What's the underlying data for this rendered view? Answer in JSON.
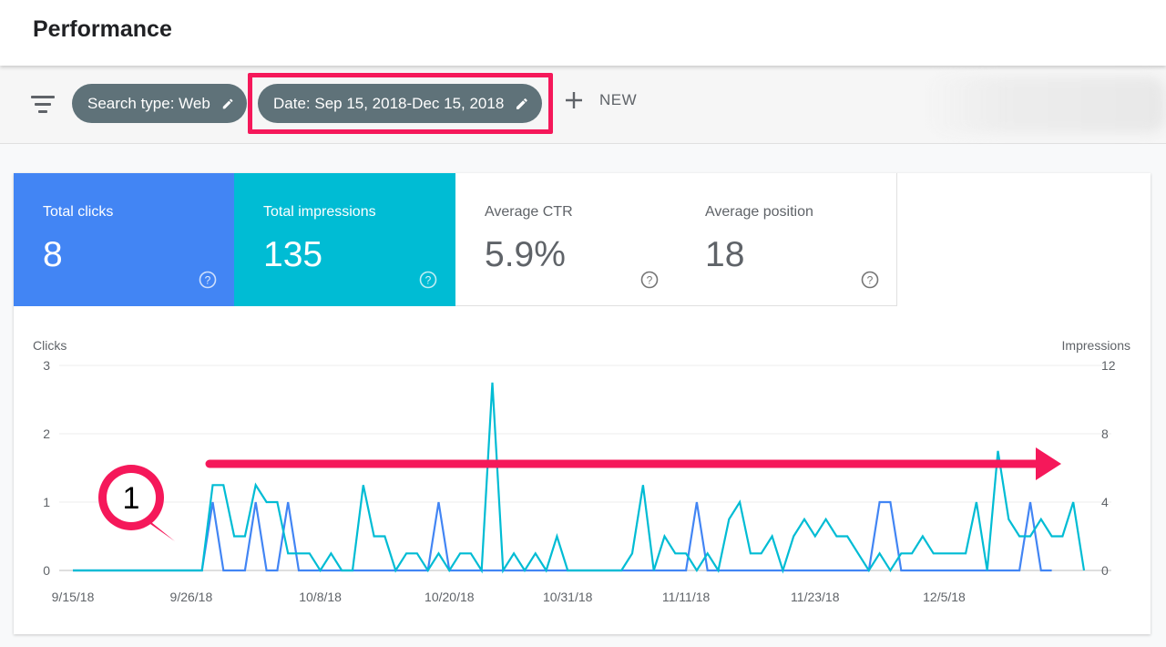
{
  "header": {
    "title": "Performance"
  },
  "filters": {
    "search_type_chip": "Search type: Web",
    "date_chip": "Date: Sep 15, 2018-Dec 15, 2018",
    "new_label": "NEW"
  },
  "metrics": [
    {
      "label": "Total clicks",
      "value": "8"
    },
    {
      "label": "Total impressions",
      "value": "135"
    },
    {
      "label": "Average CTR",
      "value": "5.9%"
    },
    {
      "label": "Average position",
      "value": "18"
    }
  ],
  "annotation": {
    "number": "1"
  },
  "colors": {
    "clicks": "#4285f4",
    "impressions": "#00bcd4",
    "highlight": "#f5185a",
    "chip": "#5f7279"
  },
  "icons": {
    "filter": "filter-icon",
    "edit": "pencil-icon",
    "add": "plus-icon",
    "help": "help-circle-icon"
  },
  "chart_data": {
    "type": "line",
    "title": "",
    "ylabel": "Clicks",
    "y2label": "Impressions",
    "ylim": [
      0,
      3
    ],
    "y2lim": [
      0,
      12
    ],
    "yticks": [
      "0",
      "1",
      "2",
      "3"
    ],
    "y2ticks": [
      "0",
      "4",
      "8",
      "12"
    ],
    "xticks": [
      "9/15/18",
      "9/26/18",
      "10/8/18",
      "10/20/18",
      "10/31/18",
      "11/11/18",
      "11/23/18",
      "12/5/18"
    ],
    "grid": true,
    "series": [
      {
        "name": "Clicks",
        "axis": "left",
        "points": [
          [
            "9/15/18",
            0
          ],
          [
            "9/27/18",
            0
          ],
          [
            "9/28/18",
            1
          ],
          [
            "9/29/18",
            0
          ],
          [
            "10/1/18",
            0
          ],
          [
            "10/2/18",
            1
          ],
          [
            "10/3/18",
            0
          ],
          [
            "10/4/18",
            0
          ],
          [
            "10/5/18",
            1
          ],
          [
            "10/6/18",
            0
          ],
          [
            "10/18/18",
            0
          ],
          [
            "10/19/18",
            1
          ],
          [
            "10/20/18",
            0
          ],
          [
            "11/11/18",
            0
          ],
          [
            "11/12/18",
            1
          ],
          [
            "11/13/18",
            0
          ],
          [
            "11/28/18",
            0
          ],
          [
            "11/29/18",
            1
          ],
          [
            "11/30/18",
            1
          ],
          [
            "12/1/18",
            0
          ],
          [
            "12/12/18",
            0
          ],
          [
            "12/13/18",
            1
          ],
          [
            "12/14/18",
            0
          ],
          [
            "12/15/18",
            0
          ]
        ]
      },
      {
        "name": "Impressions",
        "axis": "right",
        "points": [
          [
            "9/15/18",
            0
          ],
          [
            "9/27/18",
            0
          ],
          [
            "9/28/18",
            5
          ],
          [
            "9/29/18",
            5
          ],
          [
            "9/30/18",
            2
          ],
          [
            "10/1/18",
            2
          ],
          [
            "10/2/18",
            5
          ],
          [
            "10/3/18",
            4
          ],
          [
            "10/4/18",
            4
          ],
          [
            "10/5/18",
            1
          ],
          [
            "10/6/18",
            1
          ],
          [
            "10/7/18",
            1
          ],
          [
            "10/8/18",
            0
          ],
          [
            "10/9/18",
            1
          ],
          [
            "10/10/18",
            0
          ],
          [
            "10/11/18",
            0
          ],
          [
            "10/12/18",
            5
          ],
          [
            "10/13/18",
            2
          ],
          [
            "10/14/18",
            2
          ],
          [
            "10/15/18",
            0
          ],
          [
            "10/16/18",
            1
          ],
          [
            "10/17/18",
            1
          ],
          [
            "10/18/18",
            0
          ],
          [
            "10/19/18",
            1
          ],
          [
            "10/20/18",
            0
          ],
          [
            "10/21/18",
            1
          ],
          [
            "10/22/18",
            1
          ],
          [
            "10/23/18",
            0
          ],
          [
            "10/24/18",
            11
          ],
          [
            "10/25/18",
            0
          ],
          [
            "10/26/18",
            1
          ],
          [
            "10/27/18",
            0
          ],
          [
            "10/28/18",
            1
          ],
          [
            "10/29/18",
            0
          ],
          [
            "10/30/18",
            2
          ],
          [
            "10/31/18",
            0
          ],
          [
            "11/5/18",
            0
          ],
          [
            "11/6/18",
            1
          ],
          [
            "11/7/18",
            5
          ],
          [
            "11/8/18",
            0
          ],
          [
            "11/9/18",
            2
          ],
          [
            "11/10/18",
            1
          ],
          [
            "11/11/18",
            1
          ],
          [
            "11/12/18",
            0
          ],
          [
            "11/13/18",
            1
          ],
          [
            "11/14/18",
            0
          ],
          [
            "11/15/18",
            3
          ],
          [
            "11/16/18",
            4
          ],
          [
            "11/17/18",
            1
          ],
          [
            "11/18/18",
            1
          ],
          [
            "11/19/18",
            2
          ],
          [
            "11/20/18",
            0
          ],
          [
            "11/21/18",
            2
          ],
          [
            "11/22/18",
            3
          ],
          [
            "11/23/18",
            2
          ],
          [
            "11/24/18",
            3
          ],
          [
            "11/25/18",
            2
          ],
          [
            "11/26/18",
            2
          ],
          [
            "11/27/18",
            1
          ],
          [
            "11/28/18",
            0
          ],
          [
            "11/29/18",
            1
          ],
          [
            "11/30/18",
            0
          ],
          [
            "12/1/18",
            1
          ],
          [
            "12/2/18",
            1
          ],
          [
            "12/3/18",
            2
          ],
          [
            "12/4/18",
            1
          ],
          [
            "12/5/18",
            1
          ],
          [
            "12/6/18",
            1
          ],
          [
            "12/7/18",
            1
          ],
          [
            "12/8/18",
            4
          ],
          [
            "12/9/18",
            0
          ],
          [
            "12/10/18",
            7
          ],
          [
            "12/11/18",
            3
          ],
          [
            "12/12/18",
            2
          ],
          [
            "12/13/18",
            2
          ],
          [
            "12/14/18",
            3
          ],
          [
            "12/15/18",
            2
          ],
          [
            "12/16/18",
            2
          ],
          [
            "12/17/18",
            4
          ],
          [
            "12/18/18",
            0
          ]
        ]
      }
    ]
  }
}
